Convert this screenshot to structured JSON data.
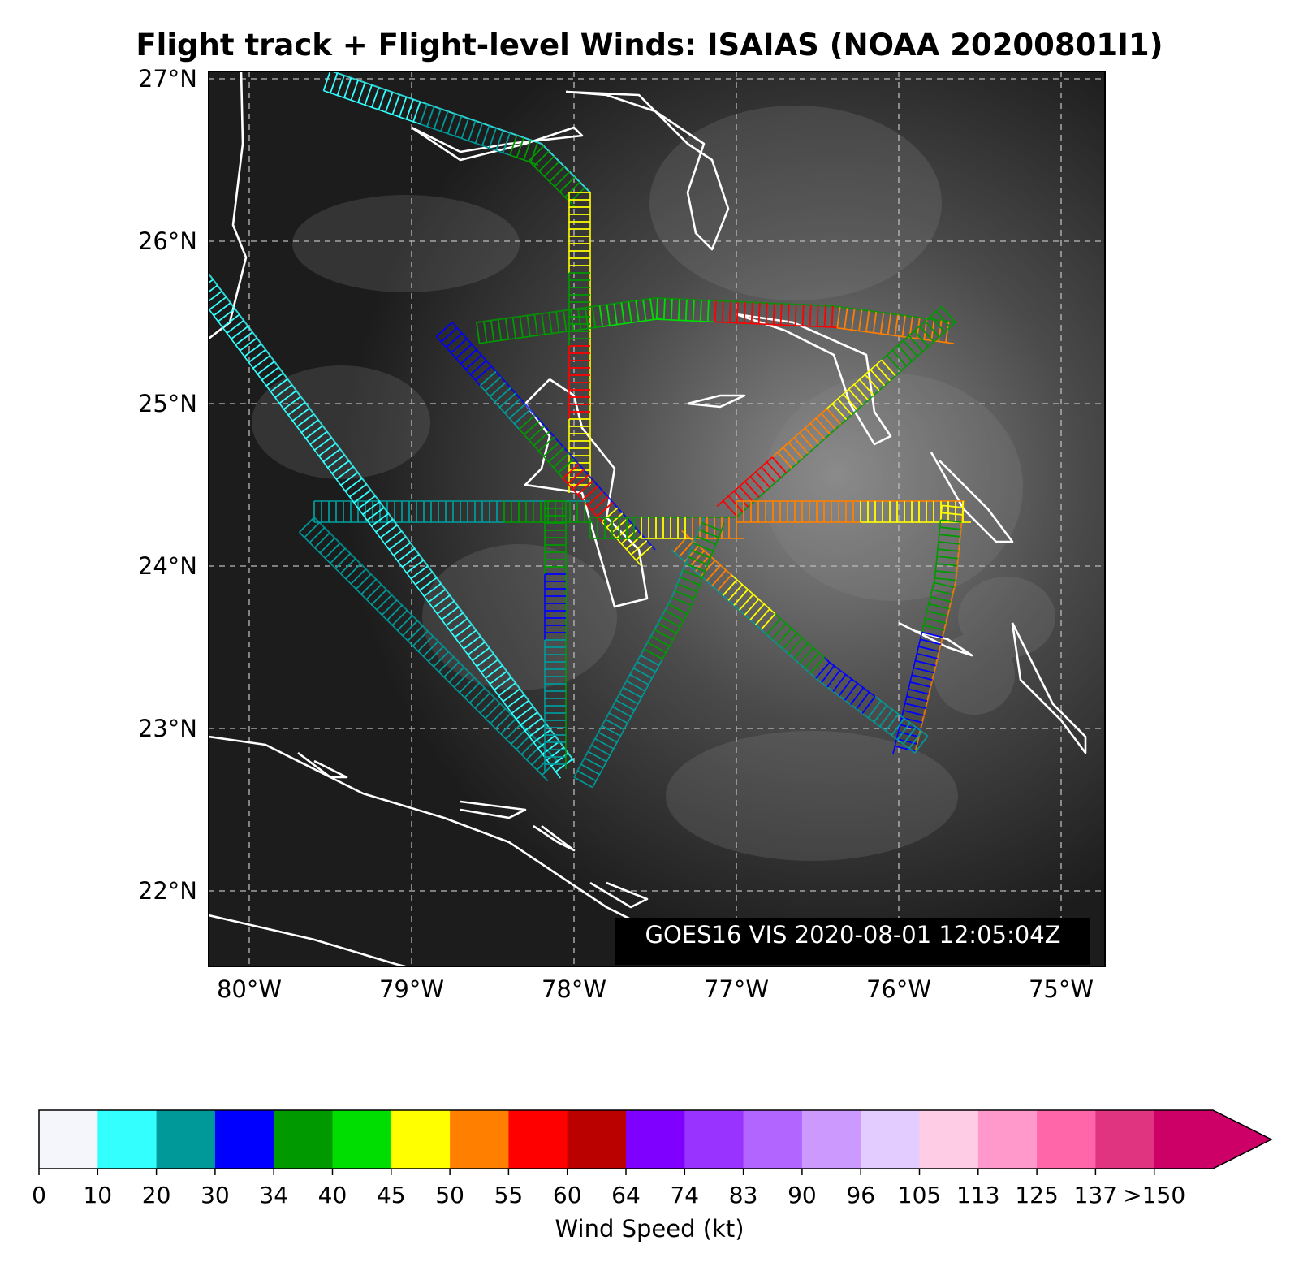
{
  "title": "Flight track + Flight-level Winds: ISAIAS (NOAA 20200801I1)",
  "image_stamp": "GOES16 VIS 2020-08-01 12:05:04Z",
  "map": {
    "lon_range": [
      -80.25,
      -74.75
    ],
    "lat_range": [
      21.5,
      27.05
    ],
    "lon_ticks": [
      "80°W",
      "79°W",
      "78°W",
      "77°W",
      "76°W",
      "75°W"
    ],
    "lat_ticks": [
      "27°N",
      "26°N",
      "25°N",
      "24°N",
      "23°N",
      "22°N"
    ],
    "grid": "dashed",
    "background": "satellite visible imagery (grayscale)",
    "coastline_color": "#ffffff"
  },
  "colorbar": {
    "label": "Wind Speed (kt)",
    "ticks": [
      "0",
      "10",
      "20",
      "30",
      "34",
      "40",
      "45",
      "50",
      "55",
      "60",
      "64",
      "74",
      "83",
      "90",
      "96",
      "105",
      "113",
      "125",
      "137",
      ">150"
    ],
    "colors": [
      "#f5f6fc",
      "#33ffff",
      "#009999",
      "#0000ff",
      "#009900",
      "#00dd00",
      "#ffff00",
      "#ff8000",
      "#ff0000",
      "#bb0000",
      "#8000ff",
      "#9933ff",
      "#b266ff",
      "#cc99ff",
      "#e3ccff",
      "#ffcce6",
      "#ff99cc",
      "#ff66aa",
      "#e03380",
      "#cc0066"
    ],
    "extend": "max"
  },
  "flight_legs": [
    {
      "path": [
        [
          -79.5,
          27.05
        ],
        [
          -78.2,
          26.6
        ],
        [
          -77.9,
          26.3
        ]
      ],
      "colors": [
        "#33ffff",
        "#009999",
        "#009900"
      ]
    },
    {
      "path": [
        [
          -77.9,
          26.3
        ],
        [
          -77.9,
          24.5
        ]
      ],
      "colors": [
        "#ffff00",
        "#009900",
        "#ff0000",
        "#ffff00"
      ]
    },
    {
      "path": [
        [
          -78.75,
          25.5
        ],
        [
          -77.5,
          24.1
        ]
      ],
      "colors": [
        "#0000ff",
        "#009999",
        "#009900",
        "#ff0000",
        "#ffff00"
      ]
    },
    {
      "path": [
        [
          -78.6,
          25.5
        ],
        [
          -77.5,
          25.65
        ],
        [
          -76.4,
          25.6
        ],
        [
          -75.65,
          25.5
        ]
      ],
      "colors": [
        "#009900",
        "#00dd00",
        "#ff0000",
        "#ff8000"
      ]
    },
    {
      "path": [
        [
          -75.65,
          25.5
        ],
        [
          -77.0,
          24.3
        ]
      ],
      "colors": [
        "#009900",
        "#ffff00",
        "#ff8000",
        "#ff0000"
      ]
    },
    {
      "path": [
        [
          -77.0,
          24.4
        ],
        [
          -75.6,
          24.4
        ],
        [
          -75.65,
          23.9
        ],
        [
          -75.9,
          22.85
        ]
      ],
      "colors": [
        "#ff8000",
        "#ffff00",
        "#009900",
        "#0000ff"
      ]
    },
    {
      "path": [
        [
          -75.9,
          22.85
        ],
        [
          -76.5,
          23.3
        ],
        [
          -77.4,
          24.1
        ]
      ],
      "colors": [
        "#009999",
        "#0000ff",
        "#009900",
        "#ffff00",
        "#ff8000"
      ]
    },
    {
      "path": [
        [
          -77.9,
          24.3
        ],
        [
          -77.0,
          24.3
        ]
      ],
      "colors": [
        "#009900",
        "#ffff00",
        "#ff8000"
      ]
    },
    {
      "path": [
        [
          -79.6,
          24.4
        ],
        [
          -77.9,
          24.4
        ]
      ],
      "colors": [
        "#009999",
        "#009999",
        "#009900"
      ]
    },
    {
      "path": [
        [
          -79.6,
          24.3
        ],
        [
          -78.1,
          22.8
        ]
      ],
      "colors": [
        "#009999"
      ]
    },
    {
      "path": [
        [
          -80.25,
          25.8
        ],
        [
          -78.0,
          22.8
        ]
      ],
      "colors": [
        "#33ffff"
      ]
    },
    {
      "path": [
        [
          -78.0,
          22.7
        ],
        [
          -77.4,
          23.8
        ],
        [
          -77.2,
          24.3
        ]
      ],
      "colors": [
        "#009999",
        "#009900"
      ]
    },
    {
      "path": [
        [
          -78.05,
          24.4
        ],
        [
          -78.05,
          22.75
        ]
      ],
      "colors": [
        "#009900",
        "#0000ff",
        "#009999",
        "#009999"
      ]
    }
  ]
}
